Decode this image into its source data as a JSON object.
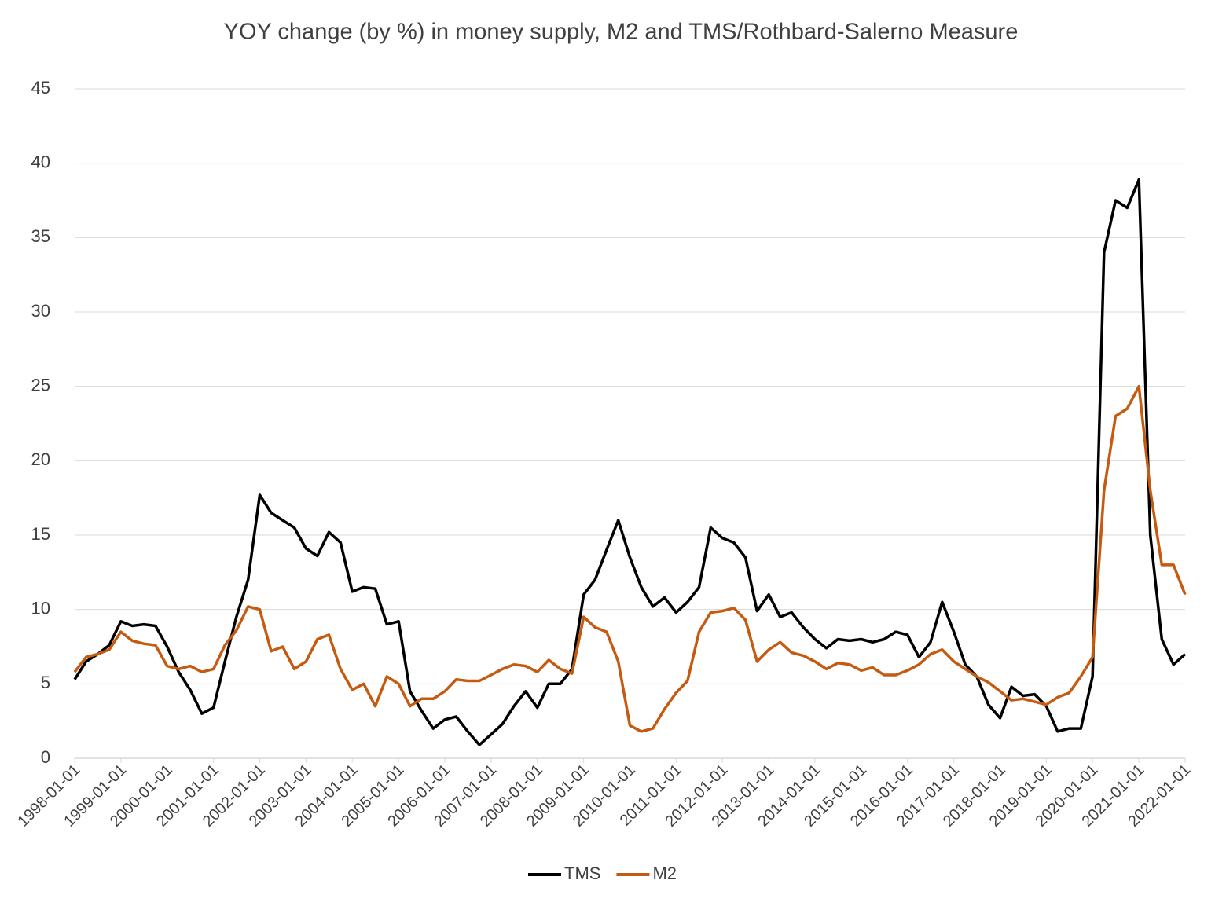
{
  "chart_data": {
    "type": "line",
    "title": "YOY change (by %) in money supply, M2 and TMS/Rothbard-Salerno Measure",
    "x": [
      "1998-01-01",
      "1998-04-01",
      "1998-07-01",
      "1998-10-01",
      "1999-01-01",
      "1999-04-01",
      "1999-07-01",
      "1999-10-01",
      "2000-01-01",
      "2000-04-01",
      "2000-07-01",
      "2000-10-01",
      "2001-01-01",
      "2001-04-01",
      "2001-07-01",
      "2001-10-01",
      "2002-01-01",
      "2002-04-01",
      "2002-07-01",
      "2002-10-01",
      "2003-01-01",
      "2003-04-01",
      "2003-07-01",
      "2003-10-01",
      "2004-01-01",
      "2004-04-01",
      "2004-07-01",
      "2004-10-01",
      "2005-01-01",
      "2005-04-01",
      "2005-07-01",
      "2005-10-01",
      "2006-01-01",
      "2006-04-01",
      "2006-07-01",
      "2006-10-01",
      "2007-01-01",
      "2007-04-01",
      "2007-07-01",
      "2007-10-01",
      "2008-01-01",
      "2008-04-01",
      "2008-07-01",
      "2008-10-01",
      "2009-01-01",
      "2009-04-01",
      "2009-07-01",
      "2009-10-01",
      "2010-01-01",
      "2010-04-01",
      "2010-07-01",
      "2010-10-01",
      "2011-01-01",
      "2011-04-01",
      "2011-07-01",
      "2011-10-01",
      "2012-01-01",
      "2012-04-01",
      "2012-07-01",
      "2012-10-01",
      "2013-01-01",
      "2013-04-01",
      "2013-07-01",
      "2013-10-01",
      "2014-01-01",
      "2014-04-01",
      "2014-07-01",
      "2014-10-01",
      "2015-01-01",
      "2015-04-01",
      "2015-07-01",
      "2015-10-01",
      "2016-01-01",
      "2016-04-01",
      "2016-07-01",
      "2016-10-01",
      "2017-01-01",
      "2017-04-01",
      "2017-07-01",
      "2017-10-01",
      "2018-01-01",
      "2018-04-01",
      "2018-07-01",
      "2018-10-01",
      "2019-01-01",
      "2019-04-01",
      "2019-07-01",
      "2019-10-01",
      "2020-01-01",
      "2020-04-01",
      "2020-07-01",
      "2020-10-01",
      "2021-01-01",
      "2021-04-01",
      "2021-07-01",
      "2021-10-01",
      "2022-01-01"
    ],
    "series": [
      {
        "name": "TMS",
        "color": "#000000",
        "values": [
          5.3,
          6.5,
          7.0,
          7.6,
          9.2,
          8.9,
          9.0,
          8.9,
          7.5,
          5.8,
          4.6,
          3.0,
          3.4,
          6.5,
          9.5,
          12.0,
          17.7,
          16.5,
          16.0,
          15.5,
          14.1,
          13.6,
          15.2,
          14.5,
          11.2,
          11.5,
          11.4,
          9.0,
          9.2,
          4.5,
          3.2,
          2.0,
          2.6,
          2.8,
          1.8,
          0.9,
          1.6,
          2.3,
          3.5,
          4.5,
          3.4,
          5.0,
          5.0,
          6.0,
          11.0,
          12.0,
          14.0,
          16.0,
          13.5,
          11.5,
          10.2,
          10.8,
          9.8,
          10.5,
          11.5,
          15.5,
          14.8,
          14.5,
          13.5,
          9.9,
          11.0,
          9.5,
          9.8,
          8.8,
          8.0,
          7.4,
          8.0,
          7.9,
          8.0,
          7.8,
          8.0,
          8.5,
          8.3,
          6.8,
          7.8,
          10.5,
          8.5,
          6.3,
          5.5,
          3.6,
          2.7,
          4.8,
          4.2,
          4.3,
          3.5,
          1.8,
          2.0,
          2.0,
          5.5,
          34.0,
          37.5,
          37.0,
          38.9,
          15.0,
          8.0,
          6.3,
          7.0
        ]
      },
      {
        "name": "M2",
        "color": "#c55a11",
        "values": [
          5.8,
          6.8,
          7.0,
          7.3,
          8.5,
          7.9,
          7.7,
          7.6,
          6.2,
          6.0,
          6.2,
          5.8,
          6.0,
          7.6,
          8.6,
          10.2,
          10.0,
          7.2,
          7.5,
          6.0,
          6.5,
          8.0,
          8.3,
          6.0,
          4.6,
          5.0,
          3.5,
          5.5,
          5.0,
          3.5,
          4.0,
          4.0,
          4.5,
          5.3,
          5.2,
          5.2,
          5.6,
          6.0,
          6.3,
          6.2,
          5.8,
          6.6,
          6.0,
          5.7,
          9.5,
          8.8,
          8.5,
          6.5,
          2.2,
          1.8,
          2.0,
          3.3,
          4.4,
          5.2,
          8.5,
          9.8,
          9.9,
          10.1,
          9.3,
          6.5,
          7.3,
          7.8,
          7.1,
          6.9,
          6.5,
          6.0,
          6.4,
          6.3,
          5.9,
          6.1,
          5.6,
          5.6,
          5.9,
          6.3,
          7.0,
          7.3,
          6.5,
          6.0,
          5.5,
          5.1,
          4.5,
          3.9,
          4.0,
          3.8,
          3.6,
          4.1,
          4.4,
          5.5,
          6.8,
          18.0,
          23.0,
          23.5,
          25.0,
          18.0,
          13.0,
          13.0,
          11.0
        ]
      }
    ],
    "xlim": [
      "1998-01-01",
      "2022-01-01"
    ],
    "xticks": [
      "1998-01-01",
      "1999-01-01",
      "2000-01-01",
      "2001-01-01",
      "2002-01-01",
      "2003-01-01",
      "2004-01-01",
      "2005-01-01",
      "2006-01-01",
      "2007-01-01",
      "2008-01-01",
      "2009-01-01",
      "2010-01-01",
      "2011-01-01",
      "2012-01-01",
      "2013-01-01",
      "2014-01-01",
      "2015-01-01",
      "2016-01-01",
      "2017-01-01",
      "2018-01-01",
      "2019-01-01",
      "2020-01-01",
      "2021-01-01",
      "2022-01-01"
    ],
    "ylim": [
      0,
      45
    ],
    "yticks": [
      0,
      5,
      10,
      15,
      20,
      25,
      30,
      35,
      40,
      45
    ],
    "grid": true,
    "legend": "bottom"
  }
}
